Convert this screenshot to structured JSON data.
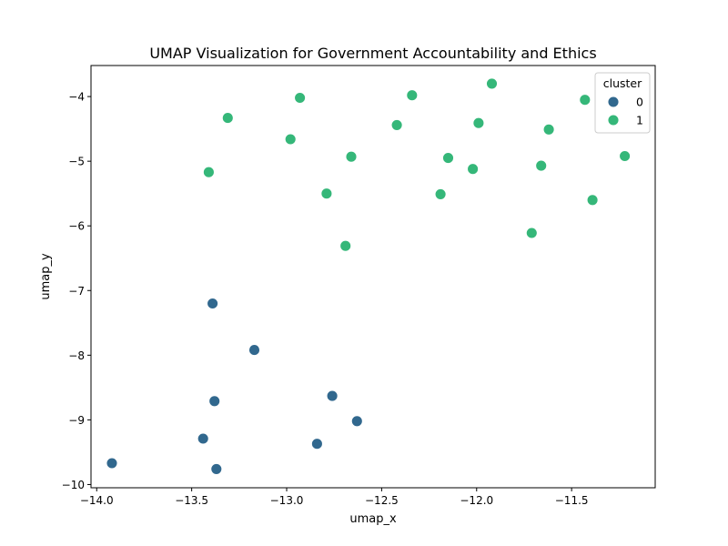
{
  "chart_data": {
    "type": "scatter",
    "title": "UMAP Visualization for Government Accountability and Ethics",
    "xlabel": "umap_x",
    "ylabel": "umap_y",
    "xlim": [
      -14.03,
      -11.06
    ],
    "ylim": [
      -10.05,
      -3.52
    ],
    "xticks": [
      -14.0,
      -13.5,
      -13.0,
      -12.5,
      -12.0,
      -11.5
    ],
    "xtick_labels": [
      "−14.0",
      "−13.5",
      "−13.0",
      "−12.5",
      "−12.0",
      "−11.5"
    ],
    "yticks": [
      -10,
      -9,
      -8,
      -7,
      -6,
      -5,
      -4
    ],
    "ytick_labels": [
      "−10",
      "−9",
      "−8",
      "−7",
      "−6",
      "−5",
      "−4"
    ],
    "grid": false,
    "legend": {
      "title": "cluster",
      "placement": "top-right",
      "entries": [
        "0",
        "1"
      ]
    },
    "series": [
      {
        "name": "0",
        "color": "#31688e",
        "points": [
          {
            "x": -13.39,
            "y": -7.2
          },
          {
            "x": -13.17,
            "y": -7.92
          },
          {
            "x": -13.38,
            "y": -8.71
          },
          {
            "x": -12.76,
            "y": -8.63
          },
          {
            "x": -12.63,
            "y": -9.02
          },
          {
            "x": -13.44,
            "y": -9.29
          },
          {
            "x": -12.84,
            "y": -9.37
          },
          {
            "x": -13.92,
            "y": -9.67
          },
          {
            "x": -13.37,
            "y": -9.76
          }
        ]
      },
      {
        "name": "1",
        "color": "#35b779",
        "points": [
          {
            "x": -13.31,
            "y": -4.33
          },
          {
            "x": -12.93,
            "y": -4.02
          },
          {
            "x": -12.98,
            "y": -4.66
          },
          {
            "x": -13.41,
            "y": -5.17
          },
          {
            "x": -12.79,
            "y": -5.5
          },
          {
            "x": -12.66,
            "y": -4.93
          },
          {
            "x": -12.69,
            "y": -6.31
          },
          {
            "x": -12.42,
            "y": -4.44
          },
          {
            "x": -12.34,
            "y": -3.98
          },
          {
            "x": -12.15,
            "y": -4.95
          },
          {
            "x": -12.19,
            "y": -5.51
          },
          {
            "x": -11.99,
            "y": -4.41
          },
          {
            "x": -12.02,
            "y": -5.12
          },
          {
            "x": -11.92,
            "y": -3.8
          },
          {
            "x": -11.71,
            "y": -6.11
          },
          {
            "x": -11.66,
            "y": -5.07
          },
          {
            "x": -11.62,
            "y": -4.51
          },
          {
            "x": -11.43,
            "y": -4.05
          },
          {
            "x": -11.39,
            "y": -5.6
          },
          {
            "x": -11.22,
            "y": -4.92
          }
        ]
      }
    ]
  }
}
